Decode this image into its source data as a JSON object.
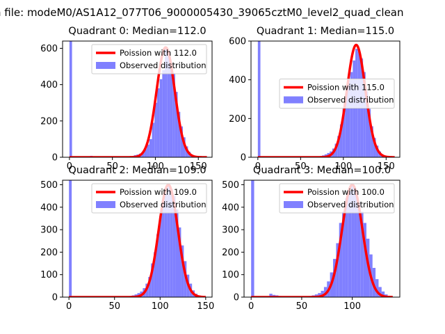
{
  "suptitle": "n file: modeM0/AS1A12_077T06_9000005430_39065cztM0_level2_quad_clean",
  "colors": {
    "poisson": "#ff0000",
    "observed": "#8080ff"
  },
  "chart_data": [
    {
      "type": "bar",
      "title": "Quadrant 0: Median=112.0",
      "median": 112.0,
      "xlim": [
        -8,
        166
      ],
      "ylim": [
        0,
        640
      ],
      "xticks": [
        0,
        50,
        100,
        150
      ],
      "yticks": [
        0,
        200,
        400,
        600
      ],
      "bin_width": 3,
      "legend": {
        "placement": "upper-right",
        "entries": [
          "Poission with 112.0",
          "Observed distribution"
        ]
      },
      "series": [
        {
          "name": "Observed distribution",
          "kind": "histogram",
          "bins": [
            [
              0,
              640
            ],
            [
              24,
              8
            ],
            [
              69,
              5
            ],
            [
              75,
              12
            ],
            [
              78,
              15
            ],
            [
              81,
              20
            ],
            [
              84,
              28
            ],
            [
              87,
              45
            ],
            [
              90,
              70
            ],
            [
              93,
              100
            ],
            [
              96,
              190
            ],
            [
              99,
              300
            ],
            [
              102,
              380
            ],
            [
              105,
              430
            ],
            [
              108,
              480
            ],
            [
              111,
              600
            ],
            [
              114,
              560
            ],
            [
              117,
              500
            ],
            [
              120,
              460
            ],
            [
              123,
              360
            ],
            [
              126,
              250
            ],
            [
              129,
              170
            ],
            [
              132,
              110
            ],
            [
              135,
              60
            ],
            [
              138,
              30
            ],
            [
              141,
              15
            ],
            [
              144,
              8
            ],
            [
              147,
              4
            ]
          ]
        },
        {
          "name": "Poission with 112.0",
          "kind": "curve",
          "mean": 112.0,
          "scale": 605,
          "x_range": [
            0,
            160
          ]
        }
      ]
    },
    {
      "type": "bar",
      "title": "Quadrant 1: Median=115.0",
      "median": 115.0,
      "xlim": [
        -8,
        166
      ],
      "ylim": [
        0,
        600
      ],
      "xticks": [
        0,
        50,
        100,
        150
      ],
      "yticks": [
        0,
        200,
        400,
        600
      ],
      "bin_width": 3,
      "legend": {
        "placement": "center-right",
        "entries": [
          "Poission with 115.0",
          "Observed distribution"
        ]
      },
      "series": [
        {
          "name": "Observed distribution",
          "kind": "histogram",
          "bins": [
            [
              0,
              600
            ],
            [
              72,
              5
            ],
            [
              75,
              10
            ],
            [
              78,
              15
            ],
            [
              81,
              22
            ],
            [
              84,
              30
            ],
            [
              87,
              45
            ],
            [
              90,
              70
            ],
            [
              93,
              110
            ],
            [
              96,
              170
            ],
            [
              99,
              250
            ],
            [
              102,
              330
            ],
            [
              105,
              400
            ],
            [
              108,
              440
            ],
            [
              111,
              500
            ],
            [
              114,
              560
            ],
            [
              117,
              545
            ],
            [
              120,
              510
            ],
            [
              123,
              440
            ],
            [
              126,
              340
            ],
            [
              129,
              250
            ],
            [
              132,
              160
            ],
            [
              135,
              100
            ],
            [
              138,
              60
            ],
            [
              141,
              30
            ],
            [
              144,
              15
            ],
            [
              147,
              8
            ],
            [
              150,
              4
            ]
          ]
        },
        {
          "name": "Poission with 115.0",
          "kind": "curve",
          "mean": 115.0,
          "scale": 580,
          "x_range": [
            0,
            160
          ]
        }
      ]
    },
    {
      "type": "bar",
      "title": "Quadrant 2: Median=109.0",
      "median": 109.0,
      "xlim": [
        -7,
        157
      ],
      "ylim": [
        0,
        520
      ],
      "xticks": [
        0,
        50,
        100,
        150
      ],
      "yticks": [
        0,
        100,
        200,
        300,
        400,
        500
      ],
      "bin_width": 3,
      "legend": {
        "placement": "upper-right",
        "entries": [
          "Poission with 109.0",
          "Observed distribution"
        ]
      },
      "series": [
        {
          "name": "Observed distribution",
          "kind": "histogram",
          "bins": [
            [
              0,
              520
            ],
            [
              63,
              3
            ],
            [
              66,
              5
            ],
            [
              69,
              8
            ],
            [
              72,
              12
            ],
            [
              75,
              18
            ],
            [
              78,
              25
            ],
            [
              81,
              40
            ],
            [
              84,
              60
            ],
            [
              87,
              90
            ],
            [
              90,
              150
            ],
            [
              93,
              200
            ],
            [
              96,
              280
            ],
            [
              99,
              360
            ],
            [
              102,
              430
            ],
            [
              105,
              460
            ],
            [
              108,
              500
            ],
            [
              111,
              480
            ],
            [
              114,
              450
            ],
            [
              117,
              390
            ],
            [
              120,
              310
            ],
            [
              123,
              230
            ],
            [
              126,
              160
            ],
            [
              129,
              100
            ],
            [
              132,
              60
            ],
            [
              135,
              30
            ],
            [
              138,
              15
            ],
            [
              141,
              8
            ],
            [
              144,
              4
            ]
          ]
        },
        {
          "name": "Poission with 109.0",
          "kind": "curve",
          "mean": 109.0,
          "scale": 500,
          "x_range": [
            0,
            150
          ]
        }
      ]
    },
    {
      "type": "bar",
      "title": "Quadrant 3: Median=100.0",
      "median": 100.0,
      "xlim": [
        -7,
        147
      ],
      "ylim": [
        0,
        520
      ],
      "xticks": [
        0,
        50,
        100
      ],
      "yticks": [
        0,
        100,
        200,
        300,
        400,
        500
      ],
      "bin_width": 3,
      "legend": {
        "placement": "upper-right",
        "entries": [
          "Poission with 100.0",
          "Observed distribution"
        ]
      },
      "series": [
        {
          "name": "Observed distribution",
          "kind": "histogram",
          "bins": [
            [
              0,
              520
            ],
            [
              18,
              15
            ],
            [
              21,
              10
            ],
            [
              24,
              8
            ],
            [
              27,
              5
            ],
            [
              57,
              5
            ],
            [
              60,
              8
            ],
            [
              63,
              12
            ],
            [
              66,
              18
            ],
            [
              69,
              28
            ],
            [
              72,
              45
            ],
            [
              75,
              70
            ],
            [
              78,
              110
            ],
            [
              81,
              170
            ],
            [
              84,
              240
            ],
            [
              87,
              330
            ],
            [
              90,
              380
            ],
            [
              93,
              440
            ],
            [
              96,
              470
            ],
            [
              99,
              500
            ],
            [
              102,
              470
            ],
            [
              105,
              420
            ],
            [
              108,
              380
            ],
            [
              111,
              330
            ],
            [
              114,
              260
            ],
            [
              117,
              190
            ],
            [
              120,
              130
            ],
            [
              123,
              80
            ],
            [
              126,
              45
            ],
            [
              129,
              25
            ],
            [
              132,
              12
            ],
            [
              135,
              6
            ]
          ]
        },
        {
          "name": "Poission with 100.0",
          "kind": "curve",
          "mean": 100.0,
          "scale": 500,
          "x_range": [
            0,
            140
          ]
        }
      ]
    }
  ]
}
